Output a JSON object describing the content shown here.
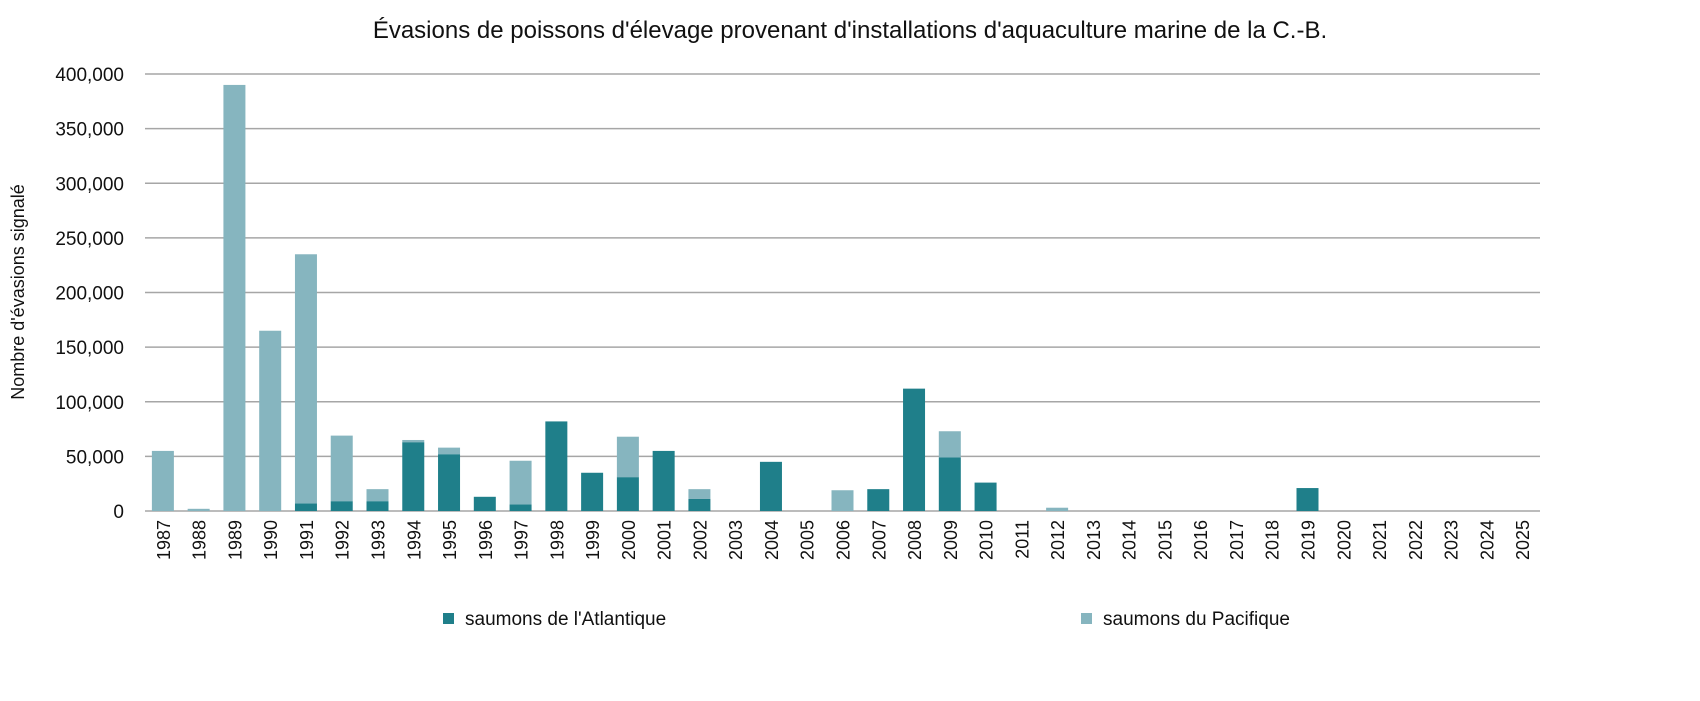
{
  "chart_data": {
    "type": "bar",
    "stacked": true,
    "title": "Évasions de poissons d'élevage provenant d'installations d'aquaculture marine de la C.-B.",
    "xlabel": "",
    "ylabel": "Nombre d'évasions signalé",
    "ylim": [
      0,
      400000
    ],
    "yticks": [
      0,
      50000,
      100000,
      150000,
      200000,
      250000,
      300000,
      350000,
      400000
    ],
    "ytick_labels": [
      "0",
      "50,000",
      "100,000",
      "150,000",
      "200,000",
      "250,000",
      "300,000",
      "350,000",
      "400,000"
    ],
    "grid": true,
    "legend_position": "bottom",
    "categories": [
      "1987",
      "1988",
      "1989",
      "1990",
      "1991",
      "1992",
      "1993",
      "1994",
      "1995",
      "1996",
      "1997",
      "1998",
      "1999",
      "2000",
      "2001",
      "2002",
      "2003",
      "2004",
      "2005",
      "2006",
      "2007",
      "2008",
      "2009",
      "2010",
      "2011",
      "2012",
      "2013",
      "2014",
      "2015",
      "2016",
      "2017",
      "2018",
      "2019",
      "2020",
      "2021",
      "2022",
      "2023",
      "2024",
      "2025"
    ],
    "series": [
      {
        "name": "saumons de l'Atlantique",
        "color": "#1f7f8a",
        "values": [
          0,
          0,
          0,
          0,
          7000,
          9000,
          9000,
          63000,
          52000,
          13000,
          6000,
          82000,
          35000,
          31000,
          55000,
          11000,
          0,
          45000,
          0,
          0,
          20000,
          112000,
          49000,
          26000,
          0,
          0,
          0,
          0,
          0,
          0,
          0,
          0,
          21000,
          0,
          0,
          0,
          0,
          0,
          0
        ]
      },
      {
        "name": "saumons du Pacifique",
        "color": "#86b5bf",
        "values": [
          55000,
          2000,
          390000,
          165000,
          228000,
          60000,
          11000,
          2000,
          6000,
          0,
          40000,
          0,
          0,
          37000,
          0,
          9000,
          0,
          0,
          0,
          19000,
          0,
          0,
          24000,
          0,
          0,
          3000,
          0,
          0,
          0,
          0,
          0,
          0,
          0,
          0,
          0,
          0,
          0,
          0,
          0
        ]
      }
    ]
  }
}
